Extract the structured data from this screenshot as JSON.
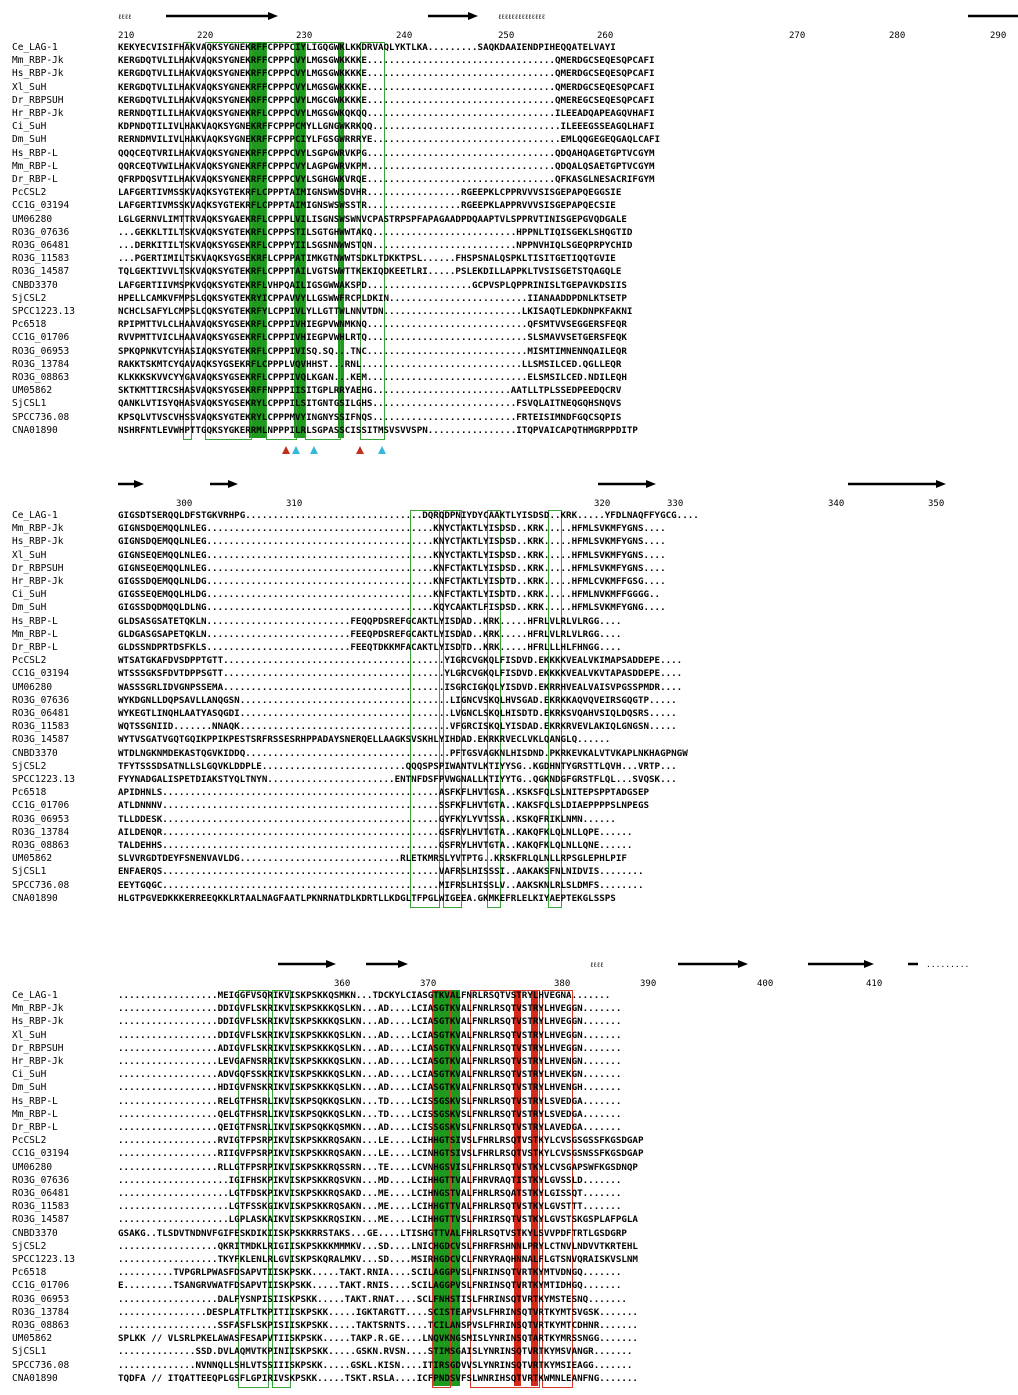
{
  "blocks": [
    {
      "ruler_numbers": [
        "210",
        "220",
        "230",
        "240",
        "250",
        "260",
        "270",
        "280",
        "290"
      ],
      "ruler_x": [
        118,
        197,
        296,
        396,
        498,
        597,
        789,
        889,
        990
      ],
      "rows": [
        {
          "name": "Ce_LAG-1",
          "seq": "KEKYECVISIFHAKVAQKSYGNEKRFFCPPPCIYLIGQGWKLKKDRVAQLYKTLKA.........SAQKDAAIENDPIHEQQATELVAYI"
        },
        {
          "name": "Mm_RBP-Jk",
          "seq": "KERGDQTVLILHAKVAQKSYGNEKRFFCPPPCVYLMGSGWKKKKE..................................QMERDGCSEQESQPCAFI"
        },
        {
          "name": "Hs_RBP-Jk",
          "seq": "KERGDQTVLILHAKVAQKSYGNEKRFFCPPPCVYLMGSGWKKKKE..................................QMERDGCSEQESQPCAFI"
        },
        {
          "name": "Xl_SuH",
          "seq": "KERGDQTVLILHAKVAQKSYGNEKRFFCPPPCVYLMGSGWKKKKE..................................QMERDGCSEQESQPCAFI"
        },
        {
          "name": "Dr_RBPSUH",
          "seq": "KERGDQTVLILHAKVAQKSYGNEKRFFCPPPCVYLMGCGWKKKKE..................................QMEREGCSEQESQPCAFI"
        },
        {
          "name": "Hr_RBP-Jk",
          "seq": "RERNDQTILILHAKVAQKSYGNEKRFLCPPPCVYLMGSGWKQKQQ..................................ILEEADQAPEAGQVHAFI"
        },
        {
          "name": "Ci_SuH",
          "seq": "KDPNDQTILIVLHAKVAQKSYGNEKRFFCPPPCMYLLGNGWKRKQQ..................................ILEEEGSSEAGQLHAFI"
        },
        {
          "name": "Dm_SuH",
          "seq": "RERNDMVILIVLHAKVAQKSYGNEKRFFCPPPCIYLFGSGWRRRYE..................................EMLQQGEGEQGAQLCAFI"
        },
        {
          "name": "Hs_RBP-L",
          "seq": "QQQCEQTVRILHAKVAQKSYGNEKRFFCPPPCVYLSGPGWRVKPG..................................QDQAHQAGETGPTVCGYM"
        },
        {
          "name": "Mm_RBP-L",
          "seq": "QQRCEQTVWILHAKVAQKSYGNEKRFFCPPPCVYLAGPGWRVKPM..................................QDQALQSAETGPTVCGYM"
        },
        {
          "name": "Dr_RBP-L",
          "seq": "QFRPDQSVTILHAKVAQKSYGNEKRFFCPPPCVYLSGHGWKVRQE..................................QFKASGLNESACRIFGYM"
        },
        {
          "name": "PcCSL2",
          "seq": "LAFGERTIVMSSKVAQKSYGTEKRFLCPPPTAIMIGNSWWSDVHR.................RGEEPKLCPPRVVVSISGEPAPQEGGSIE"
        },
        {
          "name": "CC1G_03194",
          "seq": "LAFGERTIVMSSKVAQKSYGTEKRFLCPPPTAIMIGNSWSWSSTR.................RGEEPKLAPPRVVVSISGEPAPQECSIE"
        },
        {
          "name": "UM06280",
          "seq": "LGLGERNVLIMTTRVAQKSYGAEKRFLCPPPLVILISGNSWSWNVCPASTRPSPFAPAGAADPDQAAPTVLSPPRVTINISGEPGVQDGALE"
        },
        {
          "name": "RO3G_07636",
          "seq": "...GEKKLTILTSKVAQKSYGTEKRFLCPPPSTILSGTGHWWTAKQ..........................HPPNLTIQISGEKLSHQGTID"
        },
        {
          "name": "RO3G_06481",
          "seq": "...DERKITILTSKVAQKSYGSEKRFLCPPPYIILSGSNNWWSTQN..........................NPPNVHIQLSGEQPRPYCHID"
        },
        {
          "name": "RO3G_11583",
          "seq": "...PGERTIMILTSKVAQKSYGSEKRFLCPPPATIMKGTNWWTSDKLTDKKTPSL......FHSPSNALQSPKLTISITGETIQQTGVIE"
        },
        {
          "name": "RO3G_14587",
          "seq": "TQLGEKTIVVLTSKVAQKSYGTEKRFLCPPPTAILVGTSWWTTKEKIQDKEETLRI.....PSLEKDILLAPPKLTVSISGETSTQAGQLE"
        },
        {
          "name": "CNBD3370",
          "seq": "LAFGERTIIVMSPKVGQKSYGTEKRFLVHPQAILIGSGWWAKSPD...................GCPVSPLQPPRINISLTGEPAVKDSIIS"
        },
        {
          "name": "SjCSL2",
          "seq": "HPELLCAMKVFMPSLGQKSYGTEKRYICPPAVVYLLGSWWFRCPLDKIN.........................IIANAADDPDNLKTSETP"
        },
        {
          "name": "SPCC1223.13",
          "seq": "NCHCLSAFYLCMPSLCQKSYGTEKRFYLCPPIVLYLLGTTWLNNVTDN.........................LKISAQTLEDKDNPKFAKNI"
        },
        {
          "name": "Pc6518",
          "seq": "RPIPMTTVLCLHAAVAQKSYGSEKRFLCPPPIVHIEGPVWNMKNQ.............................QFSMTVVSEGGERSFEQR"
        },
        {
          "name": "CC1G_01706",
          "seq": "RVVPMTTVICLHAAVAQKSYGSEKRFLCPPPIVHIEGPVWHLRTQ.............................SLSMAVVSETGERSFEQK"
        },
        {
          "name": "RO3G_06953",
          "seq": "SPKQPNKVTCYHASIAQKSYGTEKRFLCPPPIVISQ.SQ...TNC.............................MISMTIMNENNQAILEQR"
        },
        {
          "name": "RO3G_13784",
          "seq": "RAKKTSKMTCYGAVAQKSYGSEKRFLCPPPLVQVHHST...RNL.............................LLSMSILCED.QGLLEQR"
        },
        {
          "name": "RO3G_08863",
          "seq": "KLKKKSKVVCYYGAVAQKSYGSEKRFLCPPPIVQLKGAN...KEM.............................ELSMSILCED.NDILEQH"
        },
        {
          "name": "UM05862",
          "seq": "SKTKMTTIRCSHASVAQKSYGSEKRFFNPPPIISITGPLRRYAEHG.........................AATLLTPLSSEDPEEDQCRV"
        },
        {
          "name": "SjCSL1",
          "seq": "QANKLVTISYQHASVAQKSYGSEKRYLCPPPILSITGNTGSILGHS..........................FSVQLAITNEQGQHSNQVS"
        },
        {
          "name": "SPCC736.08",
          "seq": "KPSQLVTVSCVHSSVAQKSYGTEKRYLCPPPMVYINGNYSSIFNQS..........................FRTEISIMNDFGQCSQPIS"
        },
        {
          "name": "CNA01890",
          "seq": "NSHRFNTLEVWHPTTGQKSYGKERRMLNPPPILRLSGPASSCISSITMSVSVVSPN................ITQPVAICAPQTHMGRPPDITP"
        }
      ]
    },
    {
      "ruler_numbers": [
        "300",
        "310",
        "320",
        "330",
        "340",
        "350"
      ],
      "ruler_x": [
        176,
        286,
        594,
        667,
        828,
        928
      ],
      "rows": [
        {
          "name": "Ce_LAG-1",
          "seq": "GIGSDTSERQQLDFSTGKVRHPG................................DQRQDPNIYDYCAAKTLYISDSD..KRK.....YFDLNAQFFYGCG...."
        },
        {
          "name": "Mm_RBP-Jk",
          "seq": "GIGNSDQEMQQLNLEG.........................................KNYCTAKTLYISDSD..KRK.....HFMLSVKMFYGNS...."
        },
        {
          "name": "Hs_RBP-Jk",
          "seq": "GIGNSDQEMQQLNLEG.........................................KNYCTAKTLYISDSD..KRK.....HFMLSVKMFYGNS...."
        },
        {
          "name": "Xl_SuH",
          "seq": "GIGNSEQEMQQLNLEG.........................................KNYCTAKTLYISDSD..KRK.....HFMLSVKMFYGNS...."
        },
        {
          "name": "Dr_RBPSUH",
          "seq": "GIGNSEQEMQQLNLEG.........................................KNFCTAKTLYISDSD..KRK.....HFMLSVKMFYGNS...."
        },
        {
          "name": "Hr_RBP-Jk",
          "seq": "GIGSSDQEMQQLNLDG.........................................KNFCTAKTLYISDTD..KRK.....HFMLCVKMFFGSG...."
        },
        {
          "name": "Ci_SuH",
          "seq": "GIGSSEQEMQQLHLDG.........................................KNFCTAKTLYISDTD..KRK.....HFMLNVKMFFGGGG.."
        },
        {
          "name": "Dm_SuH",
          "seq": "GIGSSDQDMQQLDLNG.........................................KQYCAAKTLFISDSD..KRK.....HFMLSVKMFYGNG...."
        },
        {
          "name": "Hs_RBP-L",
          "seq": "GLDSASGSATETQKLN..........................FEQQPDSREFGCAKTLYISDAD..KRK.....HFRLVLRLVLRGG...."
        },
        {
          "name": "Mm_RBP-L",
          "seq": "GLDGASGSAPETQKLN..........................FEEQPDSREFGCAKTLYISDAD..KRK.....HFRLVLRLVLRGG...."
        },
        {
          "name": "Dr_RBP-L",
          "seq": "GLDSSNDPRTDSFKLS..........................FEEQTDKKMFACAKTLYISDTD..KRK.....HFRLLLHLFHNGG...."
        },
        {
          "name": "PcCSL2",
          "seq": "WTSATGKAFDVSDPPTGTT........................................YIGRCVGKQLFISDVD.EKKKKVEALVKIMAPSADDEPE...."
        },
        {
          "name": "CC1G_03194",
          "seq": "WTSSSGKSFDVTDPPSGTT........................................YLGRCVGKQLFISDVD.EKKKKVEALVKVTAPASDDEPE...."
        },
        {
          "name": "UM06280",
          "seq": "WASSSGRLIDVGNPSSEMA........................................ISGRCIGKQLYISDVD.EKRRHVEALVAISVPGSSPMDR...."
        },
        {
          "name": "RO3G_07636",
          "seq": "WYKDGNLLDQPSAVLLANQGSN......................................LIGNCVSKQLHVSGAD.EKRKKAQVQVEIRSGQGTP....."
        },
        {
          "name": "RO3G_06481",
          "seq": "WYKEGTLINQHLAATYASQGDI......................................LVGNCLSKQLHISDTD.EKRKSVQAHVSIQLDQSRS....."
        },
        {
          "name": "RO3G_11583",
          "seq": "WQTSSGNIID.......NNAQK......................................VFGRCISKQLYISDAD.EKRKRVEVLAKIQLGNGSN....."
        },
        {
          "name": "RO3G_14587",
          "seq": "WYTVSGATVGQTGQIKPPIKPESTSRFRSSESRHPPADAYSNERQELLAAGKSVSKHLYIHDAD.EKRKRVECLVKLQANGLQ......"
        },
        {
          "name": "CNBD3370",
          "seq": "WTDLNGKNMDEKASTQGVKIDDQ.....................................PFTGSVAGKNLHISDND.PKRKEVKALVTVKAPLNKHAGPNGW"
        },
        {
          "name": "SjCSL2",
          "seq": "TFYTSSSDSATNLLSLGQVKLDDPLE..........................QQQSPSPIWANTVLKTIYYSG..KGDHNTYGRSTTLQVH...VRTP..."
        },
        {
          "name": "SPCC1223.13",
          "seq": "FYYNADGALISPETDIAKSTYQLTNYN.......................ENTNFDSFPVWGNALLKTIYYTG..QGKNDGFGRSTFLQL...SVQSK..."
        },
        {
          "name": "Pc6518",
          "seq": "APIDHNLS..................................................ASFKFLHVTGSA..KSKSFQLSLNITEPSPPTADGSEP"
        },
        {
          "name": "CC1G_01706",
          "seq": "ATLDNNNV..................................................SSFKFLHVTGTA..KAKSFQLSLDIAEPPPPSLNPEGS"
        },
        {
          "name": "RO3G_06953",
          "seq": "TLLDDESK..................................................GYFKYLYVTSSA..KSKQFRIKLNMN......"
        },
        {
          "name": "RO3G_13784",
          "seq": "AILDENQR..................................................GSFRYLHVTGTA..KAKQFKLQLNLLQPE......"
        },
        {
          "name": "RO3G_08863",
          "seq": "TALDEHHS..................................................GSFRYLHVTGTA..KAKQFKLQLNLLQNE......"
        },
        {
          "name": "UM05862",
          "seq": "SLVVRGDTDEYFSNENVAVLDG.............................RLETKMRSLYVTPTG..KRSKFRLQLNLLRPSGLEPHLPIF"
        },
        {
          "name": "SjCSL1",
          "seq": "ENFAERQS..................................................VAFRSLHISSSI..AAKAKSFNLNIDVIS........"
        },
        {
          "name": "SPCC736.08",
          "seq": "EEYTGQGC..................................................MIFRSLHISSLV..AAKSKNLRLSLDMFS........"
        },
        {
          "name": "CNA01890",
          "seq": "HLGTPGVEDKKKERREEQKKLRTAALNAGFAATLPKNRNATDLKDRTLLKDGLTFPGLWIGEEA.GKMKEFRLELKIYAEPTEKGLSSPS"
        }
      ]
    },
    {
      "ruler_numbers": [
        "360",
        "370",
        "380",
        "390",
        "400",
        "410"
      ],
      "ruler_x": [
        334,
        420,
        554,
        640,
        757,
        866
      ],
      "rows": [
        {
          "name": "Ce_LAG-1",
          "seq": "..................MEIGGFVSQRIKVISKPSKKQSMKN...TDCKYLCIASGTKVALFNRLRSQTVSTRYLHVEGNA......."
        },
        {
          "name": "Mm_RBP-Jk",
          "seq": "..................DDIGVFLSKRIKVISKPSKKKQSLKN...AD....LCIASGTKVALFNRLRSQTVSTRYLHVEGGN......."
        },
        {
          "name": "Hs_RBP-Jk",
          "seq": "..................DDIGVFLSKRIKVISKPSKKKQSLKN...AD....LCIASGTKVALFNRLRSQTVSTRYLHVEGGN......."
        },
        {
          "name": "Xl_SuH",
          "seq": "..................DDIGVFLSKRIKVISKPSKKKQSLKN...AD....LCIASGTKVALFNRLRSQTVSTRYLHVEGGN......."
        },
        {
          "name": "Dr_RBPSUH",
          "seq": "..................ADIGVFLSKRIKVISKPSKKKQSLKN...AD....LCIASGTKVALFNRLRSQTVSTRYLHVEGGN......."
        },
        {
          "name": "Hr_RBP-Jk",
          "seq": "..................LEVGAFNSRRIKVISKPSKKKQSLKN...AD....LCIASGTKVALFNRLRSQTVSTRYLHVENGN......."
        },
        {
          "name": "Ci_SuH",
          "seq": "..................ADVGQFSSKRIKVISKPSKKKQSLKN...AD....LCIASGTKVALFNRLRSQTVSTRYLHVEKGN......."
        },
        {
          "name": "Dm_SuH",
          "seq": "..................HDIGVFNSKRIKVISKPSKKKQSLKN...AD....LCIASGTKVALFNRLRSQTVSTRYLHVENGH......."
        },
        {
          "name": "Hs_RBP-L",
          "seq": "..................RELGTFHSRLIKVISKPSQKKQSLKN...TD....LCISSGSKVSLFNRLRSQTVSTRYLSVEDGA......."
        },
        {
          "name": "Mm_RBP-L",
          "seq": "..................QELGTFHSRLIKVISKPSQKKQSLKN...TD....LCISSGSKVSLFNRLRSQTVSTRYLSVEDGA......."
        },
        {
          "name": "Dr_RBP-L",
          "seq": "..................QEIGTFNSRLIKVISKPSQKKQSMKN...AD....LCISSGSKVSLFNRLRSQTVSTRYLAVEDGA......."
        },
        {
          "name": "PcCSL2",
          "seq": "..................RVIGTFPSRPIKVISKPSKKRQSAKN...LE....LCIHHGTSIVSLFHRLRSQTVSTKYLCVSGSGSSFKGSDGAP"
        },
        {
          "name": "CC1G_03194",
          "seq": "..................RIIGVFPSRPIKVISKPSKKRQSAKN...LE....LCINHGTSIVSLFHRLRSQTVSTKYLCVSGSNSSFKGSDGAP"
        },
        {
          "name": "UM06280",
          "seq": "..................RLLGTFPSRPIKVISKPSKKRQSSRN...TE....LCVNHGSVISLFHRLRSQTVSTKYLCVSGAPSWFKGSDNQP"
        },
        {
          "name": "RO3G_07636",
          "seq": "....................IGIFHSKPIKVISKPSKKRQSVKN...MD....LCIHHGTTVALFHRVRAQTISTKYLGVSSLD......."
        },
        {
          "name": "RO3G_06481",
          "seq": "....................LGTFDSKPIKVISKPSKKRQSAKD...ME....LCIHNGSTVALFHRLRSQATSTKYLGISSQT......."
        },
        {
          "name": "RO3G_11583",
          "seq": "....................LGTFSSKGIKVISKPSKKRQSAKN...ME....LCIHHGTTVALFHRLRSQTVSTKYLGVSTTT......."
        },
        {
          "name": "RO3G_14587",
          "seq": "....................LGPLASKAIKVISKPSKKRQSIKN...ME....LCIHHGTTVSLFHRIRSQTVSTKYLGVSTSKGSPLAFPGLA"
        },
        {
          "name": "CNBD3370",
          "seq": "GSAKG..TLSDVTNDNVFGIFESKDIKIISKPSKKRRSTAKS...GE....LTISHGTTVALFHRLRSQTVSTKYLSVVPDFTRTLGSDGRP"
        },
        {
          "name": "SjCSL2",
          "seq": "..................QKRITMDKLRIGIISKPSKKKMMMKV...SD....LNICHGDCVSLFHRFRSHNNLPRYLCTNVLNDVVTKRTEHL"
        },
        {
          "name": "SPCC1223.13",
          "seq": "..................TKYFKLENLRLGVISKPSKQRALMKV...SD....MSIRHGDCVCLFNRYRAQHNNALFLGTSNVQRAISKVSLNM"
        },
        {
          "name": "Pc6518",
          "seq": "..........TVPGRLPWASFDSAPVTIISKPSKK.....TAKT.RNIA....SCILAGGPVSLFNRINSQTVRTKYMTVDNGQ......."
        },
        {
          "name": "CC1G_01706",
          "seq": "E.........TSANGRVWATFDSAPVTIISKPSKK.....TAKT.RNIS....SCILAGGPVSLFNRINSQTVRTKYMTIDHGQ......."
        },
        {
          "name": "RO3G_06953",
          "seq": "..................DALFYSNPISIISKPSKK.....TAKT.RNAT....SCLFNHSTISLFHRINSQTVRTKYMSTESNQ......."
        },
        {
          "name": "RO3G_13784",
          "seq": "................DESPLATFLTKPITIISKPSKK.....IGKTARGTT....SCISTEAPVSLFHRINSQTVRTKYMTSVGSK......."
        },
        {
          "name": "RO3G_08863",
          "seq": "..................SSFASFLSKPISIISKPSKK.....TAKTSRNTS....TCILANSPVSLFHRINSQTVRTKYMTCDHNR......."
        },
        {
          "name": "UM05862",
          "seq": "SPLKK // VLSRLPKELAWASFESAPVTIISKPSKK.....TAKP.R.GE....LNQVKNGSMISLYNRINSQTARTKYMRSSNGG......."
        },
        {
          "name": "SjCSL1",
          "seq": "..............SSD.DVLAQMVTKPINIISKPSKK.....GSKN.RVSN....STIMSGAISLYNRINSQTVRTKYMSVANGR......."
        },
        {
          "name": "SPCC736.08",
          "seq": "..............NVNNQLLSHLVTSSIIISKPSKK.....GSKL.KISN....ITIRSGDVVSLYNRINSQTVRTKYMSIEAGG......."
        },
        {
          "name": "CNA01890",
          "seq": "TQDFA // ITQATTEEQPLGSFLGPIRIVSKPSKK.....TSKT.RSLA....ICFPNDSVFSLWNRIHSQTVRTKWMNLEANFNG......."
        }
      ]
    }
  ]
}
